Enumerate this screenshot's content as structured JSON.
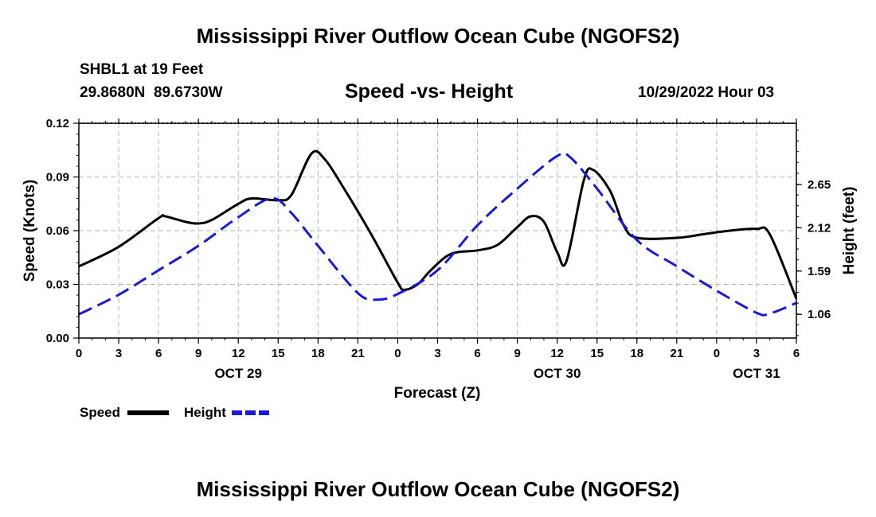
{
  "header": {
    "title": "Mississippi River Outflow Ocean Cube (NGOFS2)",
    "station": "SHBL1 at 19 Feet",
    "coords": "29.8680N  89.6730W",
    "subtitle": "Speed -vs- Height",
    "datetime": "10/29/2022 Hour 03"
  },
  "footer": {
    "title": "Mississippi River Outflow Ocean Cube (NGOFS2)"
  },
  "legend": {
    "speed_label": "Speed",
    "height_label": "Height"
  },
  "colors": {
    "speed": "#000000",
    "height": "#1a1ad6",
    "grid": "#b4b4b4"
  },
  "chart_data": {
    "type": "line",
    "title": "Speed -vs- Height",
    "xlabel": "Forecast (Z)",
    "ylabel": "Speed (Knots)",
    "y2label": "Height (feet)",
    "xlim": [
      0,
      54
    ],
    "ylim": [
      0,
      0.12
    ],
    "y2lim": [
      0.77,
      3.4
    ],
    "x_ticks": [
      0,
      3,
      6,
      9,
      12,
      15,
      18,
      21,
      24,
      27,
      30,
      33,
      36,
      39,
      42,
      45,
      48,
      51,
      54
    ],
    "x_tick_labels": [
      "0",
      "3",
      "6",
      "9",
      "12",
      "15",
      "18",
      "21",
      "0",
      "3",
      "6",
      "9",
      "12",
      "15",
      "18",
      "21",
      "0",
      "3",
      "6"
    ],
    "date_labels": [
      {
        "x": 12,
        "label": "OCT 29"
      },
      {
        "x": 36,
        "label": "OCT 30"
      },
      {
        "x": 51,
        "label": "OCT 31"
      }
    ],
    "y_ticks": [
      0,
      0.03,
      0.06,
      0.09,
      0.12
    ],
    "y_tick_labels": [
      "0.00",
      "0.03",
      "0.06",
      "0.09",
      "0.12"
    ],
    "y2_ticks": [
      1.06,
      1.59,
      2.12,
      2.65
    ],
    "y2_tick_labels": [
      "1.06",
      "1.59",
      "2.12",
      "2.65"
    ],
    "grid": true,
    "series": [
      {
        "name": "Speed",
        "axis": "left",
        "style": "solid",
        "x": [
          0,
          3,
          6,
          6.5,
          8,
          9,
          10,
          12,
          13,
          15,
          16,
          17.5,
          18.5,
          20,
          22,
          24,
          24.5,
          25.5,
          26.5,
          28,
          30,
          31.5,
          33,
          34,
          35,
          36,
          36.7,
          38,
          38.7,
          40,
          41,
          42,
          45,
          47,
          49,
          51,
          52,
          54
        ],
        "values": [
          0.04,
          0.051,
          0.067,
          0.068,
          0.065,
          0.064,
          0.066,
          0.075,
          0.078,
          0.077,
          0.08,
          0.103,
          0.1,
          0.083,
          0.058,
          0.031,
          0.027,
          0.03,
          0.038,
          0.047,
          0.049,
          0.052,
          0.062,
          0.068,
          0.065,
          0.048,
          0.043,
          0.088,
          0.094,
          0.082,
          0.063,
          0.056,
          0.056,
          0.058,
          0.06,
          0.061,
          0.058,
          0.022
        ]
      },
      {
        "name": "Height",
        "axis": "right",
        "style": "dashed",
        "x": [
          0,
          3,
          6,
          9,
          12,
          14.5,
          16,
          18,
          21,
          22.5,
          24,
          27,
          30,
          33,
          36,
          37,
          39,
          42,
          45,
          48,
          51,
          52,
          54
        ],
        "values": [
          1.06,
          1.3,
          1.6,
          1.9,
          2.25,
          2.48,
          2.3,
          1.9,
          1.32,
          1.24,
          1.31,
          1.6,
          2.15,
          2.6,
          3.0,
          2.98,
          2.6,
          1.97,
          1.65,
          1.35,
          1.08,
          1.07,
          1.2
        ]
      }
    ]
  }
}
